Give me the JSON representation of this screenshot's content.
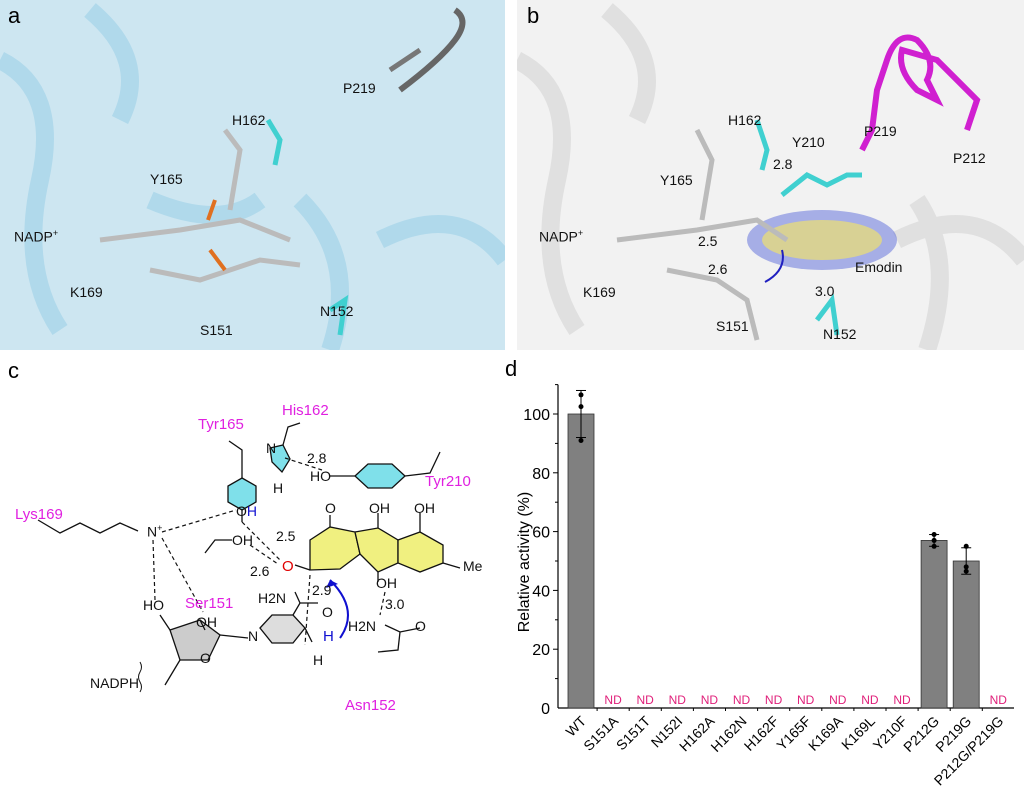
{
  "panels": {
    "a": "a",
    "b": "b",
    "c": "c",
    "d": "d"
  },
  "panel_a": {
    "labels": {
      "h162": "H162",
      "p219": "P219",
      "y165": "Y165",
      "nadp": "NADP",
      "nadp_sup": "+",
      "k169": "K169",
      "s151": "S151",
      "n152": "N152"
    },
    "background": "#cde6f1"
  },
  "panel_b": {
    "labels": {
      "h162": "H162",
      "y210": "Y210",
      "p219": "P219",
      "p212": "P212",
      "y165": "Y165",
      "d28": "2.8",
      "nadp": "NADP",
      "nadp_sup": "+",
      "d25": "2.5",
      "d26": "2.6",
      "emodin": "Emodin",
      "k169": "K169",
      "d30": "3.0",
      "s151": "S151",
      "n152": "N152"
    },
    "background": "#f2f2f2",
    "loop_color": "#d020d0",
    "density_color": "#4a5ad8"
  },
  "panel_c": {
    "residues": {
      "his162": "His162",
      "tyr165": "Tyr165",
      "tyr210": "Tyr210",
      "lys169": "Lys169",
      "ser151": "Ser151",
      "asn152": "Asn152"
    },
    "distances": {
      "d28": "2.8",
      "d25": "2.5",
      "d26": "2.6",
      "d29": "2.9",
      "d30": "3.0"
    },
    "atoms": {
      "N": "N",
      "H": "H",
      "HO": "HO",
      "OH": "OH",
      "O": "O",
      "Nplus": "N",
      "plus": "+",
      "Me": "Me",
      "H2N": "H2N",
      "NADPH": "NADPH"
    },
    "colors": {
      "residue": "#e020e0",
      "ring_tyr": "#40d0e0",
      "ring_emodin": "#e8e860",
      "carbonyl": "#e00000",
      "hydride": "#1010d0"
    }
  },
  "chart_data": {
    "type": "bar",
    "categories": [
      "WT",
      "S151A",
      "S151T",
      "N152I",
      "H162A",
      "H162N",
      "H162F",
      "Y165F",
      "K169A",
      "K169L",
      "Y210F",
      "P212G",
      "P219G",
      "P212G/P219G"
    ],
    "values": [
      100,
      null,
      null,
      null,
      null,
      null,
      null,
      null,
      null,
      null,
      null,
      57,
      50,
      null
    ],
    "error": [
      8,
      null,
      null,
      null,
      null,
      null,
      null,
      null,
      null,
      null,
      null,
      2,
      4.5,
      null
    ],
    "points": [
      [
        106.5,
        102.5,
        91
      ],
      [],
      [],
      [],
      [],
      [],
      [],
      [],
      [],
      [],
      [],
      [
        59,
        57,
        55
      ],
      [
        55,
        48,
        46.5
      ],
      []
    ],
    "nd_label": "ND",
    "ylabel": "Relative activity (%)",
    "xlabel": "",
    "ylim": [
      0,
      110
    ],
    "yticks": [
      0,
      20,
      40,
      60,
      80,
      100
    ],
    "grid": false,
    "bar_color": "#808080",
    "nd_color": "#e0207a"
  }
}
